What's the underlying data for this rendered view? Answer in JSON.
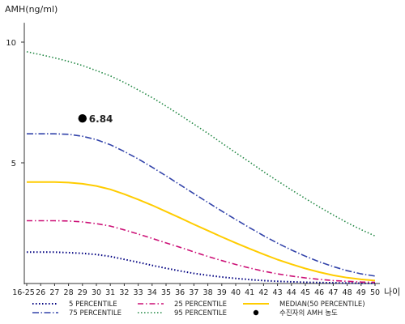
{
  "chart_data": {
    "type": "line",
    "ylabel": "AMH(ng/ml)",
    "xlabel": "나이",
    "ylim": [
      0,
      10.8
    ],
    "y_ticks": [
      5,
      10
    ],
    "x": [
      "16-25",
      "26",
      "27",
      "28",
      "29",
      "30",
      "31",
      "32",
      "33",
      "34",
      "35",
      "36",
      "37",
      "38",
      "39",
      "40",
      "41",
      "42",
      "43",
      "44",
      "45",
      "46",
      "47",
      "48",
      "49",
      "50"
    ],
    "grid": false,
    "legend_position": "bottom",
    "series": [
      {
        "name": "5 PERCENTILE",
        "color": "#000080",
        "dash": "1.5 2.5",
        "width": 2,
        "values": [
          1.3,
          1.3,
          1.3,
          1.28,
          1.25,
          1.2,
          1.12,
          1.0,
          0.88,
          0.75,
          0.63,
          0.52,
          0.42,
          0.34,
          0.27,
          0.21,
          0.16,
          0.12,
          0.09,
          0.07,
          0.05,
          0.04,
          0.03,
          0.02,
          0.01,
          0.01
        ]
      },
      {
        "name": "25 PERCENTILE",
        "color": "#cc1177",
        "dash": "7 3 1.5 3",
        "width": 1.6,
        "values": [
          2.6,
          2.6,
          2.6,
          2.59,
          2.55,
          2.48,
          2.38,
          2.22,
          2.05,
          1.87,
          1.68,
          1.5,
          1.31,
          1.12,
          0.95,
          0.79,
          0.64,
          0.51,
          0.4,
          0.31,
          0.23,
          0.17,
          0.12,
          0.09,
          0.06,
          0.05
        ]
      },
      {
        "name": "MEDIAN(50 PERCENTILE)",
        "color": "#ffcc00",
        "dash": "",
        "width": 2,
        "values": [
          4.2,
          4.2,
          4.2,
          4.18,
          4.13,
          4.04,
          3.9,
          3.7,
          3.48,
          3.24,
          2.98,
          2.72,
          2.45,
          2.19,
          1.93,
          1.68,
          1.44,
          1.21,
          0.99,
          0.8,
          0.62,
          0.47,
          0.34,
          0.24,
          0.17,
          0.12
        ]
      },
      {
        "name": "75 PERCENTILE",
        "color": "#3344aa",
        "dash": "8 2.5 1.5 2.5",
        "width": 1.6,
        "values": [
          6.2,
          6.2,
          6.2,
          6.18,
          6.1,
          5.96,
          5.75,
          5.47,
          5.16,
          4.82,
          4.46,
          4.09,
          3.72,
          3.36,
          3.0,
          2.65,
          2.31,
          1.98,
          1.67,
          1.39,
          1.13,
          0.9,
          0.7,
          0.53,
          0.4,
          0.31
        ]
      },
      {
        "name": "95 PERCENTILE",
        "color": "#228844",
        "dash": "1.5 2.5",
        "width": 1.6,
        "values": [
          9.6,
          9.48,
          9.35,
          9.2,
          9.03,
          8.82,
          8.6,
          8.33,
          8.02,
          7.7,
          7.35,
          6.98,
          6.6,
          6.22,
          5.82,
          5.42,
          5.03,
          4.63,
          4.25,
          3.88,
          3.52,
          3.17,
          2.84,
          2.52,
          2.23,
          1.97
        ]
      }
    ],
    "point": {
      "label": "수진자의 AMH 농도",
      "x": "29",
      "y": 6.84,
      "value_label": "6.84",
      "color": "#000000"
    },
    "legend_order": [
      "5 PERCENTILE",
      "25 PERCENTILE",
      "MEDIAN(50 PERCENTILE)",
      "75 PERCENTILE",
      "95 PERCENTILE",
      "수진자의 AMH 농도"
    ]
  }
}
